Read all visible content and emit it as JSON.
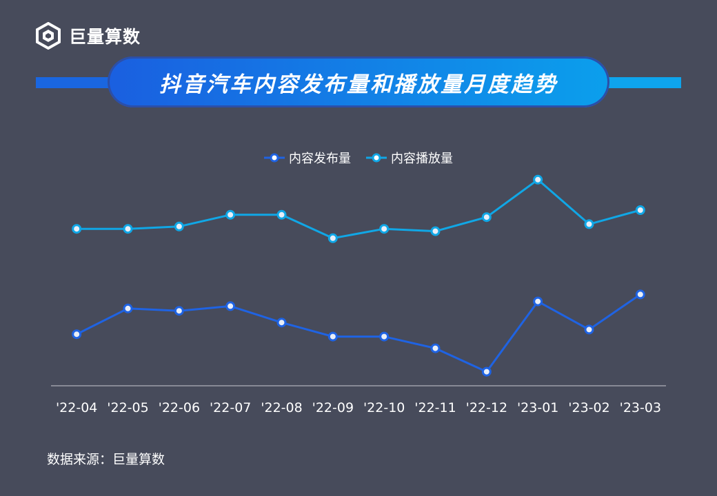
{
  "brand": {
    "name": "巨量算数",
    "logo_icon": "hexagon-logo-icon"
  },
  "title": "抖音汽车内容发布量和播放量月度趋势",
  "source": "数据来源：巨量算数",
  "colors": {
    "background": "#474b5b",
    "series_publish": "#1f63e3",
    "series_play": "#10a7e6"
  },
  "chart_data": {
    "type": "line",
    "title": "抖音汽车内容发布量和播放量月度趋势",
    "categories": [
      "'22-04",
      "'22-05",
      "'22-06",
      "'22-07",
      "'22-08",
      "'22-09",
      "'22-10",
      "'22-11",
      "'22-12",
      "'23-01",
      "'23-02",
      "'23-03"
    ],
    "yaxis_visible": false,
    "grid": false,
    "legend_position": "top-center",
    "ylim": [
      0,
      100
    ],
    "series": [
      {
        "name": "内容发布量",
        "color": "#1f63e3",
        "values": [
          22,
          33,
          32,
          34,
          27,
          21,
          21,
          16,
          6,
          36,
          24,
          39
        ]
      },
      {
        "name": "内容播放量",
        "color": "#10a7e6",
        "values": [
          67,
          67,
          68,
          73,
          73,
          63,
          67,
          66,
          72,
          88,
          69,
          75
        ]
      }
    ]
  }
}
